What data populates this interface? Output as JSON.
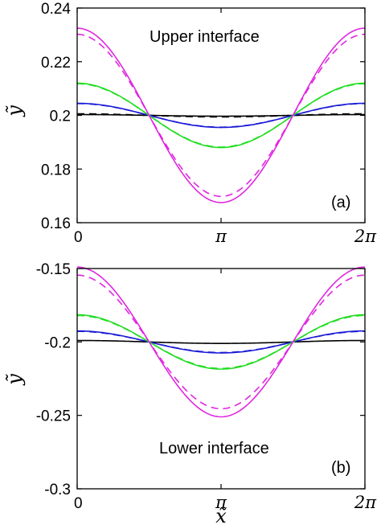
{
  "chart_data": [
    {
      "type": "line",
      "panel_label": "(a)",
      "annotation": "Upper interface",
      "xlabel": "",
      "ylabel": "ỹ",
      "xlim": [
        0,
        6.2832
      ],
      "ylim": [
        0.16,
        0.24
      ],
      "yticks": [
        0.16,
        0.18,
        0.2,
        0.22,
        0.24
      ],
      "ytick_labels": [
        "0.16",
        "0.18",
        "0.2",
        "0.22",
        "0.24"
      ],
      "xticks": [
        0,
        3.1416,
        6.2832
      ],
      "xtick_labels": [
        "0",
        "π",
        "2π"
      ],
      "grid": false,
      "series": [
        {
          "color": "#000000",
          "style": "solid",
          "mean": 0.2,
          "amplitude": 0.0003
        },
        {
          "color": "#000000",
          "style": "dashed",
          "mean": 0.2,
          "amplitude": 0.0006
        },
        {
          "color": "#1a1ad6",
          "style": "solid",
          "mean": 0.2,
          "amplitude": 0.0045
        },
        {
          "color": "#1a1ad6",
          "style": "dashed",
          "mean": 0.2,
          "amplitude": 0.0044
        },
        {
          "color": "#22dd22",
          "style": "solid",
          "mean": 0.2,
          "amplitude": 0.012
        },
        {
          "color": "#22dd22",
          "style": "dashed",
          "mean": 0.2,
          "amplitude": 0.0118
        },
        {
          "color": "#e026e0",
          "style": "solid",
          "mean": 0.2,
          "amplitude": 0.0325
        },
        {
          "color": "#e026e0",
          "style": "dashed",
          "mean": 0.2,
          "amplitude": 0.0302
        }
      ]
    },
    {
      "type": "line",
      "panel_label": "(b)",
      "annotation": "Lower interface",
      "xlabel": "x̃",
      "ylabel": "ỹ",
      "xlim": [
        0,
        6.2832
      ],
      "ylim": [
        -0.3,
        -0.15
      ],
      "yticks": [
        -0.3,
        -0.25,
        -0.2,
        -0.15
      ],
      "ytick_labels": [
        "-0.3",
        "-0.25",
        "-0.2",
        "-0.15"
      ],
      "xticks": [
        0,
        3.1416,
        6.2832
      ],
      "xtick_labels": [
        "0",
        "π",
        "2π"
      ],
      "grid": false,
      "series": [
        {
          "color": "#000000",
          "style": "solid",
          "mean": -0.2,
          "amplitude": 0.001
        },
        {
          "color": "#1a1ad6",
          "style": "solid",
          "mean": -0.2,
          "amplitude": 0.0075
        },
        {
          "color": "#1a1ad6",
          "style": "dashed",
          "mean": -0.2,
          "amplitude": 0.0072
        },
        {
          "color": "#22dd22",
          "style": "solid",
          "mean": -0.2,
          "amplitude": 0.0185
        },
        {
          "color": "#22dd22",
          "style": "dashed",
          "mean": -0.2,
          "amplitude": 0.018
        },
        {
          "color": "#e026e0",
          "style": "solid",
          "mean": -0.2,
          "amplitude": 0.051
        },
        {
          "color": "#e026e0",
          "style": "dashed",
          "mean": -0.2,
          "amplitude": 0.0455
        }
      ]
    }
  ]
}
